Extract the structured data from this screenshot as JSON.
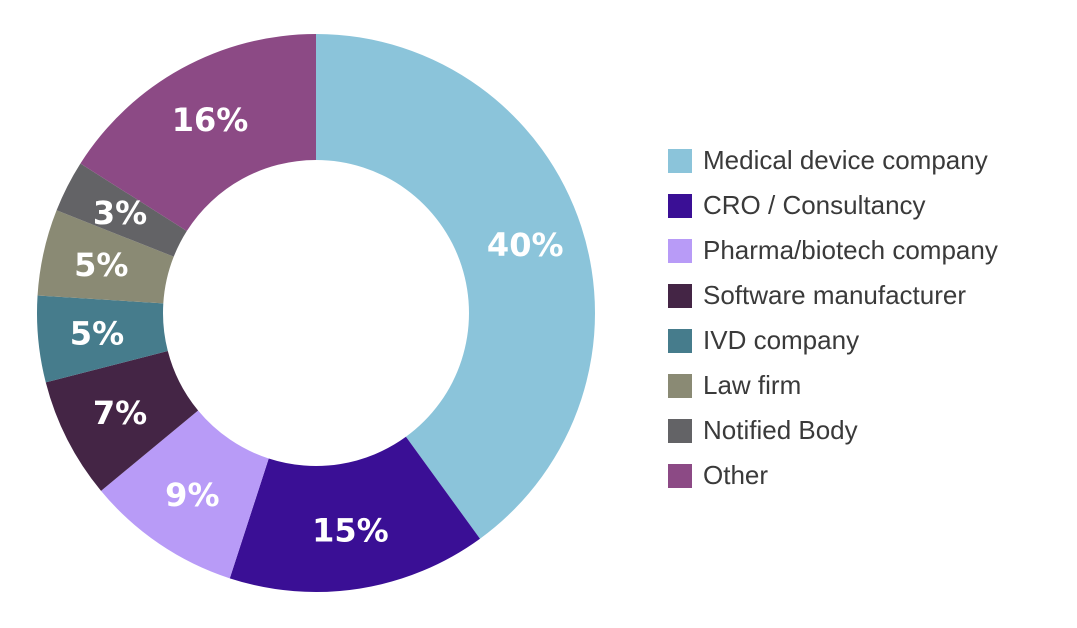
{
  "chart_data": {
    "type": "pie",
    "title": "",
    "donut": true,
    "legend_position": "right",
    "categories": [
      "Medical device company",
      "CRO / Consultancy",
      "Pharma/biotech company",
      "Software manufacturer",
      "IVD company",
      "Law firm",
      "Notified Body",
      "Other"
    ],
    "values": [
      40,
      15,
      9,
      7,
      5,
      5,
      3,
      16
    ],
    "value_labels": [
      "40%",
      "15%",
      "9%",
      "7%",
      "5%",
      "5%",
      "3%",
      "16%"
    ],
    "colors": [
      "#8bc4da",
      "#3a0f95",
      "#b89bf7",
      "#442545",
      "#467c8c",
      "#8a8a74",
      "#636366",
      "#8c4a85"
    ]
  }
}
